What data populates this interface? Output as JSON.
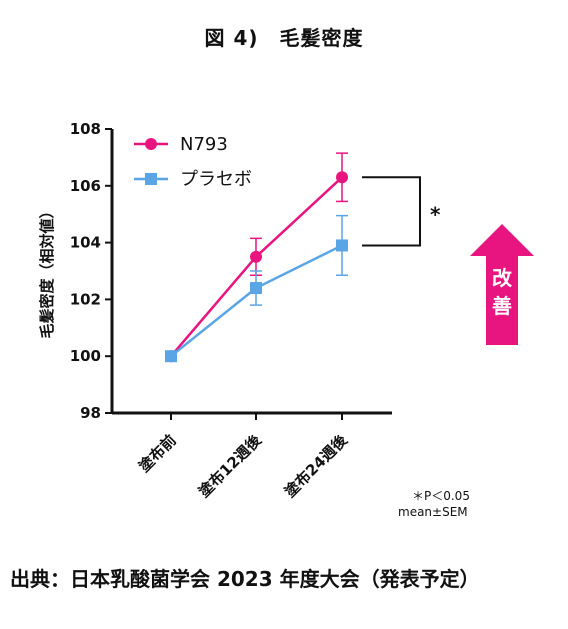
{
  "figure_title": "図 4)　毛髪密度",
  "caption": "出典：日本乳酸菌学会 2023 年度大会（発表予定）",
  "chart_data": {
    "type": "line",
    "ylabel": "毛髪密度（相対値）",
    "xlabel": "",
    "ylim": [
      98,
      108
    ],
    "yticks": [
      98,
      100,
      102,
      104,
      106,
      108
    ],
    "ytick_labels": [
      "98",
      "100",
      "102",
      "104",
      "106",
      "108"
    ],
    "categories": [
      "塗布前",
      "塗布12週後",
      "塗布24週後"
    ],
    "legend_position": "top-left",
    "series": [
      {
        "name": "N793",
        "color": "#e8147f",
        "marker": "circle",
        "values": [
          100,
          103.5,
          106.3
        ],
        "errors": [
          0,
          0.65,
          0.85
        ]
      },
      {
        "name": "プラセボ",
        "color": "#5aa5e6",
        "marker": "square",
        "values": [
          100,
          102.4,
          103.9
        ],
        "errors": [
          0,
          0.6,
          1.05
        ]
      }
    ],
    "annotations": {
      "significance": "*",
      "note_line1": "＊P＜0.05",
      "note_line2": "mean±SEM",
      "arrow_label_1": "改",
      "arrow_label_2": "善",
      "arrow_color": "#e8147f"
    }
  }
}
